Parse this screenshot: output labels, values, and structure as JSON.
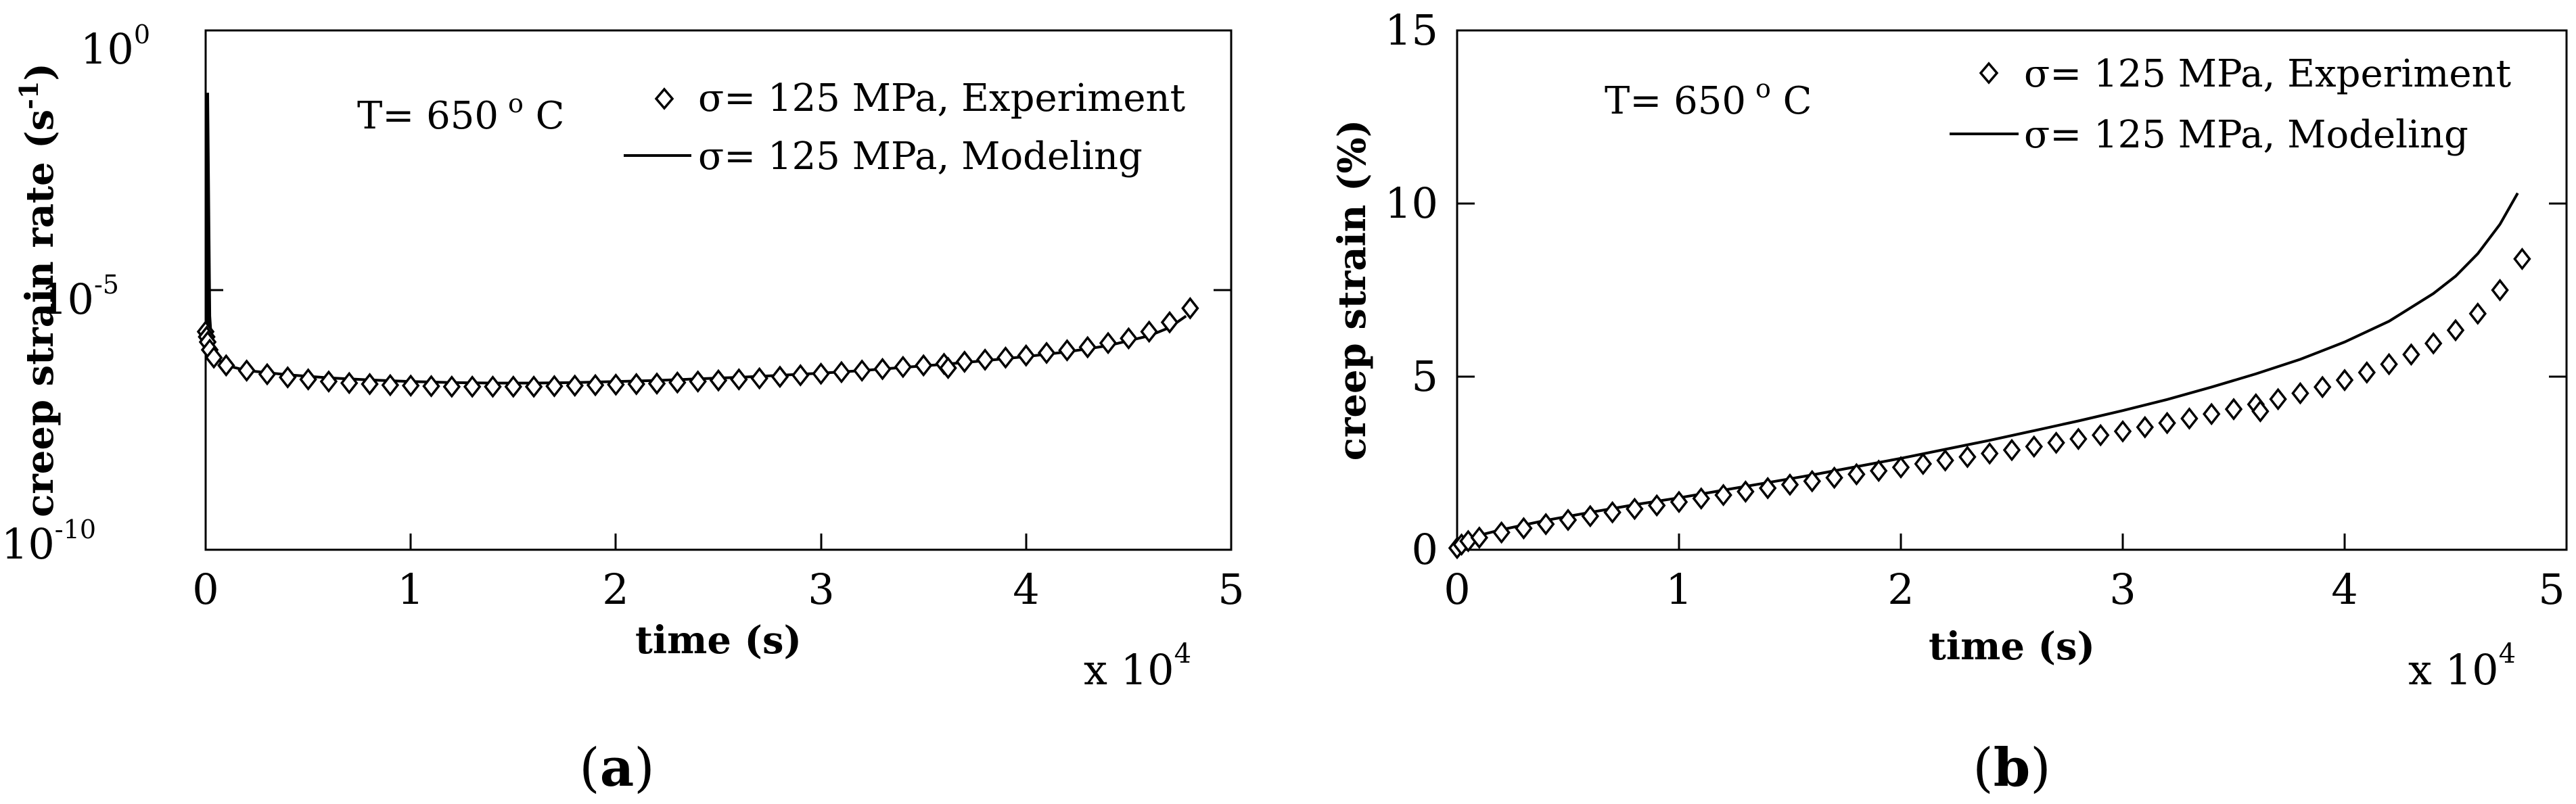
{
  "chart_data": [
    {
      "panel": "a",
      "caption": "a",
      "type": "line",
      "ylabel": "creep strain rate (s",
      "ylabel_sup": "-1",
      "ylabel_close": ")",
      "xlabel": "time (s)",
      "x_multiplier": "x 10",
      "x_multiplier_exp": "4",
      "yscale": "log",
      "xlim": [
        0,
        5
      ],
      "ylim_exp": [
        -10,
        0
      ],
      "xticks": [
        "0",
        "1",
        "2",
        "3",
        "4",
        "5"
      ],
      "yticks": [
        {
          "exp": -10,
          "base": "10",
          "sup": "-10"
        },
        {
          "exp": -5,
          "base": "10",
          "sup": "-5"
        },
        {
          "exp": 0,
          "base": "10",
          "sup": "0"
        }
      ],
      "annotation": {
        "text": "T= 650",
        "deg": "o",
        "unit": " C"
      },
      "legend": [
        {
          "label": "σ= 125 MPa, Experiment",
          "marker": "diamond"
        },
        {
          "label": "σ= 125 MPa, Modeling",
          "marker": "line"
        }
      ],
      "series": [
        {
          "name": "σ= 125 MPa, Experiment",
          "style": "marker",
          "x": [
            0,
            0.005,
            0.01,
            0.02,
            0.04,
            0.1,
            0.2,
            0.3,
            0.4,
            0.5,
            0.6,
            0.7,
            0.8,
            0.9,
            1.0,
            1.1,
            1.2,
            1.3,
            1.4,
            1.5,
            1.6,
            1.7,
            1.8,
            1.9,
            2.0,
            2.1,
            2.2,
            2.3,
            2.4,
            2.5,
            2.6,
            2.7,
            2.8,
            2.9,
            3.0,
            3.1,
            3.2,
            3.3,
            3.4,
            3.5,
            3.6,
            3.62,
            3.7,
            3.8,
            3.9,
            4.0,
            4.1,
            4.2,
            4.3,
            4.4,
            4.5,
            4.6,
            4.7,
            4.8
          ],
          "log10_y": [
            -5.8,
            -5.9,
            -6.0,
            -6.15,
            -6.3,
            -6.45,
            -6.55,
            -6.62,
            -6.68,
            -6.72,
            -6.76,
            -6.79,
            -6.81,
            -6.83,
            -6.84,
            -6.85,
            -6.86,
            -6.86,
            -6.86,
            -6.86,
            -6.86,
            -6.85,
            -6.84,
            -6.83,
            -6.82,
            -6.81,
            -6.8,
            -6.78,
            -6.76,
            -6.74,
            -6.72,
            -6.7,
            -6.67,
            -6.64,
            -6.61,
            -6.58,
            -6.55,
            -6.52,
            -6.48,
            -6.45,
            -6.42,
            -6.5,
            -6.38,
            -6.34,
            -6.3,
            -6.26,
            -6.21,
            -6.16,
            -6.1,
            -6.02,
            -5.93,
            -5.8,
            -5.62,
            -5.35
          ]
        },
        {
          "name": "σ= 125 MPa, Modeling",
          "style": "line",
          "x": [
            0,
            0.01,
            0.01,
            0.02,
            0.03,
            0.05,
            0.08,
            0.1,
            0.2,
            0.4,
            0.6,
            0.8,
            1.0,
            1.2,
            1.4,
            1.6,
            1.8,
            2.0,
            2.2,
            2.4,
            2.6,
            2.8,
            3.0,
            3.2,
            3.4,
            3.6,
            3.8,
            4.0,
            4.2,
            4.4,
            4.6,
            4.7,
            4.78
          ],
          "log10_y": [
            -6.2,
            -6.3,
            -1.2,
            -5.5,
            -6.1,
            -6.3,
            -6.4,
            -6.45,
            -6.55,
            -6.63,
            -6.69,
            -6.73,
            -6.76,
            -6.78,
            -6.79,
            -6.79,
            -6.78,
            -6.76,
            -6.74,
            -6.71,
            -6.68,
            -6.64,
            -6.6,
            -6.55,
            -6.49,
            -6.43,
            -6.36,
            -6.28,
            -6.19,
            -6.07,
            -5.88,
            -5.72,
            -5.5
          ]
        }
      ]
    },
    {
      "panel": "b",
      "caption": "b",
      "type": "line",
      "ylabel": "creep strain (%)",
      "xlabel": "time (s)",
      "x_multiplier": "x 10",
      "x_multiplier_exp": "4",
      "xlim": [
        0,
        5
      ],
      "ylim": [
        0,
        15
      ],
      "xticks": [
        "0",
        "1",
        "2",
        "3",
        "4",
        "5"
      ],
      "yticks": [
        "0",
        "5",
        "10",
        "15"
      ],
      "annotation": {
        "text": "T= 650",
        "deg": "o",
        "unit": " C"
      },
      "legend": [
        {
          "label": "σ= 125 MPa, Experiment",
          "marker": "diamond"
        },
        {
          "label": "σ= 125 MPa, Modeling",
          "marker": "line"
        }
      ],
      "series": [
        {
          "name": "σ= 125 MPa, Experiment",
          "style": "marker",
          "x": [
            0,
            0.02,
            0.05,
            0.1,
            0.2,
            0.3,
            0.4,
            0.5,
            0.6,
            0.7,
            0.8,
            0.9,
            1.0,
            1.1,
            1.2,
            1.3,
            1.4,
            1.5,
            1.6,
            1.7,
            1.8,
            1.9,
            2.0,
            2.1,
            2.2,
            2.3,
            2.4,
            2.5,
            2.6,
            2.7,
            2.8,
            2.9,
            3.0,
            3.1,
            3.2,
            3.3,
            3.4,
            3.5,
            3.6,
            3.62,
            3.7,
            3.8,
            3.9,
            4.0,
            4.1,
            4.2,
            4.3,
            4.4,
            4.5,
            4.6,
            4.7,
            4.8
          ],
          "y": [
            0.05,
            0.15,
            0.25,
            0.35,
            0.5,
            0.62,
            0.74,
            0.86,
            0.97,
            1.08,
            1.18,
            1.28,
            1.38,
            1.48,
            1.58,
            1.68,
            1.78,
            1.88,
            1.98,
            2.08,
            2.18,
            2.28,
            2.38,
            2.48,
            2.58,
            2.68,
            2.78,
            2.88,
            2.98,
            3.09,
            3.2,
            3.31,
            3.42,
            3.54,
            3.66,
            3.79,
            3.92,
            4.06,
            4.2,
            4.0,
            4.35,
            4.52,
            4.7,
            4.9,
            5.12,
            5.36,
            5.64,
            5.96,
            6.34,
            6.82,
            7.5,
            8.4
          ]
        },
        {
          "name": "σ= 125 MPa, Modeling",
          "style": "line",
          "x": [
            0,
            0.05,
            0.1,
            0.2,
            0.4,
            0.6,
            0.8,
            1.0,
            1.2,
            1.4,
            1.6,
            1.8,
            2.0,
            2.2,
            2.4,
            2.6,
            2.8,
            3.0,
            3.2,
            3.4,
            3.6,
            3.8,
            4.0,
            4.2,
            4.4,
            4.5,
            4.6,
            4.7,
            4.78
          ],
          "y": [
            0.1,
            0.3,
            0.42,
            0.58,
            0.85,
            1.08,
            1.3,
            1.5,
            1.72,
            1.94,
            2.16,
            2.4,
            2.64,
            2.9,
            3.16,
            3.44,
            3.72,
            4.02,
            4.34,
            4.7,
            5.08,
            5.5,
            6.0,
            6.6,
            7.4,
            7.9,
            8.55,
            9.4,
            10.3
          ]
        }
      ]
    }
  ]
}
